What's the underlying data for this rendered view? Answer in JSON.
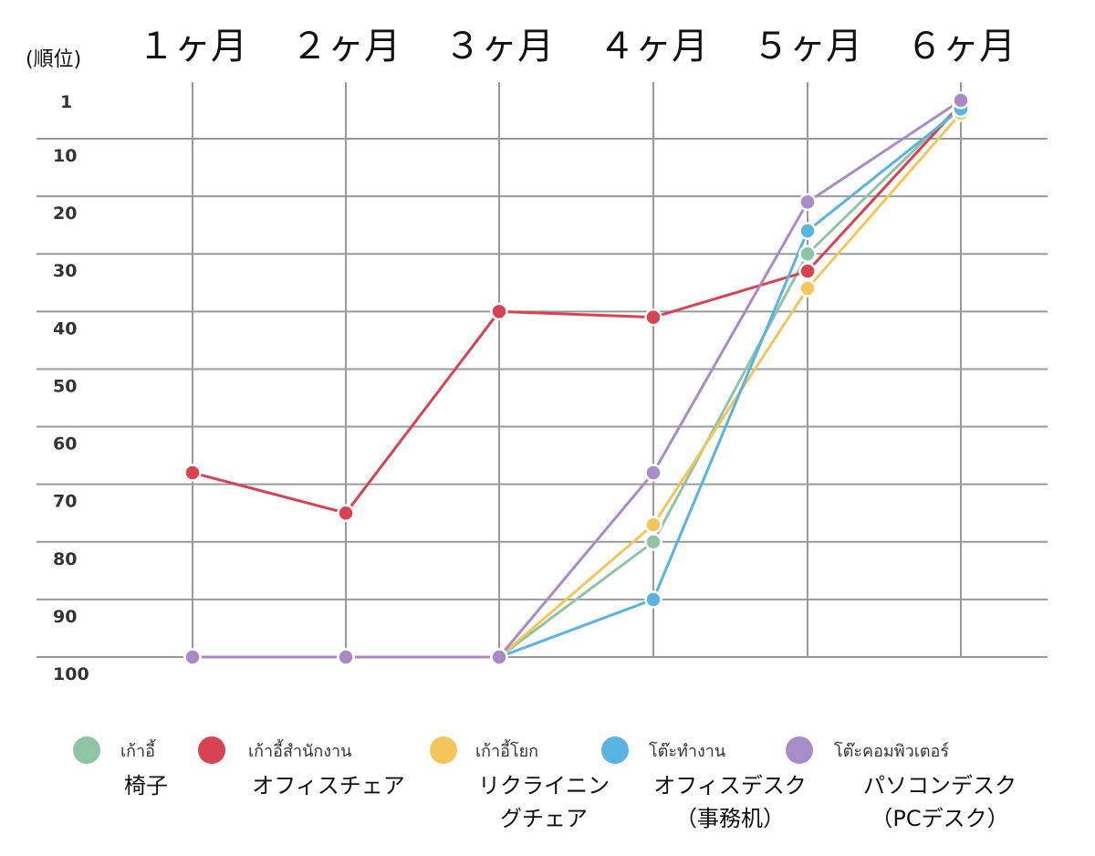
{
  "chart_data": {
    "type": "line",
    "ylabel": "(順位)",
    "categories": [
      "１ヶ月",
      "２ヶ月",
      "３ヶ月",
      "４ヶ月",
      "５ヶ月",
      "６ヶ月"
    ],
    "y_ticks": [
      "1",
      "10",
      "20",
      "30",
      "40",
      "50",
      "60",
      "70",
      "80",
      "90",
      "100"
    ],
    "y_tick_values": [
      1,
      10,
      20,
      30,
      40,
      50,
      60,
      70,
      80,
      90,
      100
    ],
    "ylim": [
      100,
      1
    ],
    "y_inverted": true,
    "grid": true,
    "legend_position": "bottom",
    "series": [
      {
        "name": "เก้าอี้",
        "label_ja": [
          "椅子"
        ],
        "color": "#8fc5a5",
        "values": [
          100,
          100,
          100,
          80,
          30,
          2
        ]
      },
      {
        "name": "เก้าอี้สำนักงาน",
        "label_ja": [
          "オフィスチェア"
        ],
        "color": "#d94250",
        "values": [
          68,
          75,
          40,
          41,
          33,
          2
        ]
      },
      {
        "name": "เก้าอี้โยก",
        "label_ja": [
          "リクライニン",
          "グチェア"
        ],
        "color": "#f3c65a",
        "values": [
          100,
          100,
          100,
          77,
          36,
          4
        ]
      },
      {
        "name": "โต๊ะทำงาน",
        "label_ja": [
          "オフィスデスク",
          "（事務机）"
        ],
        "color": "#59b3e3",
        "values": [
          100,
          100,
          100,
          90,
          26,
          3
        ]
      },
      {
        "name": "โต๊ะคอมพิวเตอร์",
        "label_ja": [
          "パソコンデスク",
          "（PCデスク）"
        ],
        "color": "#a78cc8",
        "values": [
          100,
          100,
          100,
          68,
          21,
          1
        ]
      }
    ]
  }
}
